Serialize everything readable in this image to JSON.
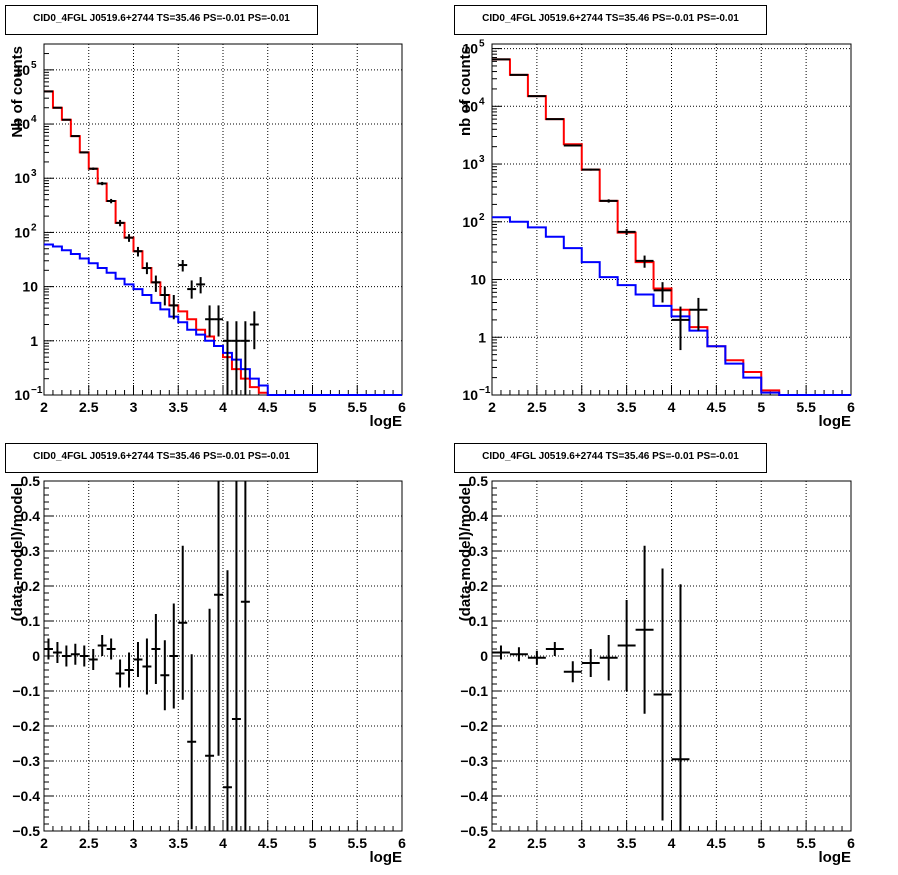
{
  "colors": {
    "data": "#000000",
    "total_model": "#ff0000",
    "component_model": "#0000ff",
    "grid": "#000000"
  },
  "chart_data": [
    {
      "type": "step-histogram",
      "title": "CID0_4FGL J0519.6+2744 TS=35.46 PS=-0.01 PS=-0.01",
      "xlabel": "logE",
      "ylabel": "Nb of counts",
      "xlim": [
        2,
        6
      ],
      "ylim": [
        0.1,
        300000
      ],
      "yscale": "log",
      "grid": true,
      "xticks": [
        "2",
        "2.5",
        "3",
        "3.5",
        "4",
        "4.5",
        "5",
        "5.5",
        "6"
      ],
      "yticks": [
        {
          "value": 0.1,
          "base": "10",
          "exp": "−1"
        },
        {
          "value": 1,
          "base": "1",
          "exp": ""
        },
        {
          "value": 10,
          "base": "10",
          "exp": ""
        },
        {
          "value": 100,
          "base": "10",
          "exp": "2"
        },
        {
          "value": 1000,
          "base": "10",
          "exp": "3"
        },
        {
          "value": 10000,
          "base": "10",
          "exp": "4"
        },
        {
          "value": 100000,
          "base": "10",
          "exp": "5"
        }
      ],
      "bin_edges": [
        2.0,
        2.1,
        2.2,
        2.3,
        2.4,
        2.5,
        2.6,
        2.7,
        2.8,
        2.9,
        3.0,
        3.1,
        3.2,
        3.3,
        3.4,
        3.5,
        3.6,
        3.7,
        3.8,
        3.9,
        4.0,
        4.1,
        4.2,
        4.3,
        4.4,
        4.5,
        4.6,
        4.7,
        4.8,
        4.9,
        5.0,
        5.1,
        5.2,
        5.3,
        5.4,
        5.5,
        5.6,
        5.7,
        5.8,
        5.9,
        6.0
      ],
      "series": [
        {
          "name": "total model",
          "color": "#ff0000",
          "values": [
            40000,
            20000,
            12000,
            6000,
            3000,
            1500,
            800,
            380,
            150,
            80,
            45,
            22,
            12,
            7,
            4.5,
            3.5,
            2.5,
            1.6,
            1.2,
            0.8,
            0.5,
            0.3,
            0.2,
            0.14,
            0.11,
            0.1,
            0.1,
            0.1,
            0.1,
            0.1,
            0.1,
            0.1,
            0.1,
            0.1,
            0.1,
            0.1,
            0.1,
            0.1,
            0.1,
            0.1
          ]
        },
        {
          "name": "component model",
          "color": "#0000ff",
          "values": [
            60,
            55,
            47,
            40,
            33,
            27,
            22,
            18,
            14,
            11,
            9,
            7,
            5,
            3.8,
            2.8,
            2.2,
            1.6,
            1.3,
            1,
            0.8,
            0.6,
            0.45,
            0.3,
            0.2,
            0.15,
            0.1,
            0.1,
            0.1,
            0.1,
            0.1,
            0.1,
            0.1,
            0.1,
            0.1,
            0.1,
            0.1,
            0.1,
            0.1,
            0.1,
            0.1
          ]
        }
      ],
      "points": [
        {
          "x": 2.05,
          "y": 40000,
          "ylo": 39600,
          "yhi": 40400
        },
        {
          "x": 2.15,
          "y": 20000,
          "ylo": 19700,
          "yhi": 20300
        },
        {
          "x": 2.25,
          "y": 12000,
          "ylo": 11780,
          "yhi": 12220
        },
        {
          "x": 2.35,
          "y": 6000,
          "ylo": 5850,
          "yhi": 6150
        },
        {
          "x": 2.45,
          "y": 3000,
          "ylo": 2890,
          "yhi": 3110
        },
        {
          "x": 2.55,
          "y": 1500,
          "ylo": 1420,
          "yhi": 1580
        },
        {
          "x": 2.65,
          "y": 800,
          "ylo": 745,
          "yhi": 855
        },
        {
          "x": 2.75,
          "y": 380,
          "ylo": 345,
          "yhi": 415
        },
        {
          "x": 2.85,
          "y": 150,
          "ylo": 130,
          "yhi": 170
        },
        {
          "x": 2.95,
          "y": 80,
          "ylo": 67,
          "yhi": 93
        },
        {
          "x": 3.05,
          "y": 45,
          "ylo": 36,
          "yhi": 54
        },
        {
          "x": 3.15,
          "y": 22,
          "ylo": 17,
          "yhi": 28
        },
        {
          "x": 3.25,
          "y": 12,
          "ylo": 8,
          "yhi": 16
        },
        {
          "x": 3.35,
          "y": 7,
          "ylo": 4.5,
          "yhi": 10
        },
        {
          "x": 3.45,
          "y": 4.5,
          "ylo": 2.5,
          "yhi": 7
        },
        {
          "x": 3.55,
          "y": 25,
          "ylo": 19,
          "yhi": 31
        },
        {
          "x": 3.65,
          "y": 9,
          "ylo": 6,
          "yhi": 13
        },
        {
          "x": 3.75,
          "y": 11,
          "ylo": 7.5,
          "yhi": 15
        },
        {
          "x": 3.85,
          "y": 2.5,
          "ylo": 1.2,
          "yhi": 4.5
        },
        {
          "x": 3.95,
          "y": 2.5,
          "ylo": 1.2,
          "yhi": 4.5
        },
        {
          "x": 4.05,
          "y": 1,
          "ylo": 0.1,
          "yhi": 2.3
        },
        {
          "x": 4.15,
          "y": 1,
          "ylo": 0.1,
          "yhi": 2.3
        },
        {
          "x": 4.25,
          "y": 1,
          "ylo": 0.1,
          "yhi": 2.3
        },
        {
          "x": 4.35,
          "y": 2,
          "ylo": 0.7,
          "yhi": 3.5
        }
      ]
    },
    {
      "type": "step-histogram",
      "title": "CID0_4FGL J0519.6+2744 TS=35.46 PS=-0.01 PS=-0.01",
      "xlabel": "logE",
      "ylabel": "nb of counts",
      "xlim": [
        2,
        6
      ],
      "ylim": [
        0.1,
        120000
      ],
      "yscale": "log",
      "grid": true,
      "xticks": [
        "2",
        "2.5",
        "3",
        "3.5",
        "4",
        "4.5",
        "5",
        "5.5",
        "6"
      ],
      "yticks": [
        {
          "value": 0.1,
          "base": "10",
          "exp": "−1"
        },
        {
          "value": 1,
          "base": "1",
          "exp": ""
        },
        {
          "value": 10,
          "base": "10",
          "exp": ""
        },
        {
          "value": 100,
          "base": "10",
          "exp": "2"
        },
        {
          "value": 1000,
          "base": "10",
          "exp": "3"
        },
        {
          "value": 10000,
          "base": "10",
          "exp": "4"
        },
        {
          "value": 100000,
          "base": "10",
          "exp": "5"
        }
      ],
      "bin_edges": [
        2.0,
        2.2,
        2.4,
        2.6,
        2.8,
        3.0,
        3.2,
        3.4,
        3.6,
        3.8,
        4.0,
        4.2,
        4.4,
        4.6,
        4.8,
        5.0,
        5.2,
        5.4,
        5.6,
        5.8,
        6.0
      ],
      "series": [
        {
          "name": "total model",
          "color": "#ff0000",
          "values": [
            65000,
            35000,
            15000,
            6000,
            2200,
            800,
            230,
            65,
            20,
            7,
            3,
            1.5,
            0.7,
            0.4,
            0.25,
            0.12,
            0.1,
            0.1,
            0.1,
            0.1
          ]
        },
        {
          "name": "component model",
          "color": "#0000ff",
          "values": [
            120,
            100,
            80,
            55,
            35,
            20,
            11,
            8,
            5.5,
            3.5,
            2.3,
            1.3,
            0.7,
            0.35,
            0.2,
            0.11,
            0.1,
            0.1,
            0.1,
            0.1
          ]
        }
      ],
      "points": [
        {
          "x": 2.1,
          "y": 65000,
          "ylo": 64750,
          "yhi": 65250
        },
        {
          "x": 2.3,
          "y": 35000,
          "ylo": 34800,
          "yhi": 35200
        },
        {
          "x": 2.5,
          "y": 15000,
          "ylo": 14880,
          "yhi": 15120
        },
        {
          "x": 2.7,
          "y": 6000,
          "ylo": 5920,
          "yhi": 6080
        },
        {
          "x": 2.9,
          "y": 2100,
          "ylo": 2050,
          "yhi": 2150
        },
        {
          "x": 3.1,
          "y": 800,
          "ylo": 770,
          "yhi": 830
        },
        {
          "x": 3.3,
          "y": 230,
          "ylo": 215,
          "yhi": 245
        },
        {
          "x": 3.5,
          "y": 67,
          "ylo": 59,
          "yhi": 75
        },
        {
          "x": 3.7,
          "y": 21,
          "ylo": 16,
          "yhi": 26
        },
        {
          "x": 3.9,
          "y": 6.5,
          "ylo": 4,
          "yhi": 9
        },
        {
          "x": 4.1,
          "y": 2,
          "ylo": 0.6,
          "yhi": 3.4
        },
        {
          "x": 4.3,
          "y": 3,
          "ylo": 1.3,
          "yhi": 4.8
        }
      ]
    },
    {
      "type": "errorbar",
      "title": "CID0_4FGL J0519.6+2744 TS=35.46 PS=-0.01 PS=-0.01",
      "xlabel": "logE",
      "ylabel": "(data-model)/model",
      "xlim": [
        2,
        6
      ],
      "ylim": [
        -0.5,
        0.5
      ],
      "grid": true,
      "xticks": [
        "2",
        "2.5",
        "3",
        "3.5",
        "4",
        "4.5",
        "5",
        "5.5",
        "6"
      ],
      "yticks": [
        "−0.5",
        "−0.4",
        "−0.3",
        "−0.2",
        "−0.1",
        "0",
        "0.1",
        "0.2",
        "0.3",
        "0.4",
        "0.5"
      ],
      "xerr": 0.05,
      "points": [
        {
          "x": 2.05,
          "y": 0.02,
          "err": 0.03
        },
        {
          "x": 2.15,
          "y": 0.01,
          "err": 0.03
        },
        {
          "x": 2.25,
          "y": 0.0,
          "err": 0.03
        },
        {
          "x": 2.35,
          "y": 0.005,
          "err": 0.03
        },
        {
          "x": 2.45,
          "y": 0.0,
          "err": 0.03
        },
        {
          "x": 2.55,
          "y": -0.01,
          "err": 0.03
        },
        {
          "x": 2.65,
          "y": 0.03,
          "err": 0.03
        },
        {
          "x": 2.75,
          "y": 0.02,
          "err": 0.03
        },
        {
          "x": 2.85,
          "y": -0.05,
          "err": 0.04
        },
        {
          "x": 2.95,
          "y": -0.04,
          "err": 0.05
        },
        {
          "x": 3.05,
          "y": -0.01,
          "err": 0.05
        },
        {
          "x": 3.15,
          "y": -0.03,
          "err": 0.08
        },
        {
          "x": 3.25,
          "y": 0.02,
          "err": 0.1
        },
        {
          "x": 3.35,
          "y": -0.055,
          "err": 0.1
        },
        {
          "x": 3.45,
          "y": 0.0,
          "err": 0.15
        },
        {
          "x": 3.55,
          "y": 0.095,
          "err": 0.22
        },
        {
          "x": 3.65,
          "y": -0.245,
          "err": 0.25
        },
        {
          "x": 3.85,
          "y": -0.285,
          "err": 0.42
        },
        {
          "x": 3.95,
          "y": 0.175,
          "err": 0.46
        },
        {
          "x": 4.05,
          "y": -0.375,
          "err": 0.62
        },
        {
          "x": 4.15,
          "y": -0.18,
          "err": 0.75
        },
        {
          "x": 4.25,
          "y": 0.155,
          "err": 0.75
        }
      ]
    },
    {
      "type": "errorbar",
      "title": "CID0_4FGL J0519.6+2744 TS=35.46 PS=-0.01 PS=-0.01",
      "xlabel": "logE",
      "ylabel": "(data-model)/model",
      "xlim": [
        2,
        6
      ],
      "ylim": [
        -0.5,
        0.5
      ],
      "grid": true,
      "xticks": [
        "2",
        "2.5",
        "3",
        "3.5",
        "4",
        "4.5",
        "5",
        "5.5",
        "6"
      ],
      "yticks": [
        "−0.5",
        "−0.4",
        "−0.3",
        "−0.2",
        "−0.1",
        "0",
        "0.1",
        "0.2",
        "0.3",
        "0.4",
        "0.5"
      ],
      "xerr": 0.1,
      "points": [
        {
          "x": 2.1,
          "y": 0.01,
          "err": 0.02
        },
        {
          "x": 2.3,
          "y": 0.005,
          "err": 0.02
        },
        {
          "x": 2.5,
          "y": -0.005,
          "err": 0.02
        },
        {
          "x": 2.7,
          "y": 0.02,
          "err": 0.02
        },
        {
          "x": 2.9,
          "y": -0.045,
          "err": 0.03
        },
        {
          "x": 3.1,
          "y": -0.02,
          "err": 0.04
        },
        {
          "x": 3.3,
          "y": -0.005,
          "err": 0.065
        },
        {
          "x": 3.5,
          "y": 0.03,
          "err": 0.13
        },
        {
          "x": 3.7,
          "y": 0.075,
          "err": 0.24
        },
        {
          "x": 3.9,
          "y": -0.11,
          "err": 0.36
        },
        {
          "x": 4.1,
          "y": -0.295,
          "err": 0.5
        }
      ]
    }
  ]
}
